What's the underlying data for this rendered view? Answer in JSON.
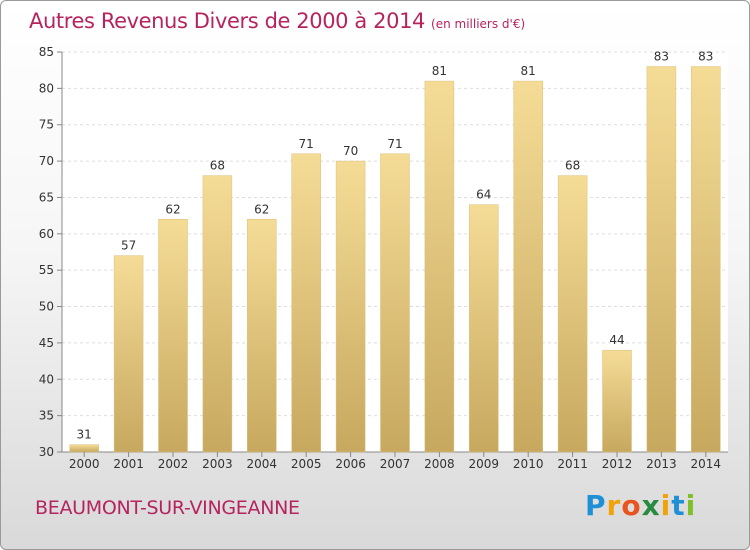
{
  "title": "Autres Revenus Divers de 2000 à 2014",
  "unit": "(en milliers d'€)",
  "city": "BEAUMONT-SUR-VINGEANNE",
  "logo": {
    "letters": [
      {
        "ch": "P",
        "color": "#1f8fd6"
      },
      {
        "ch": "r",
        "color": "#f0a20a"
      },
      {
        "ch": "o",
        "color": "#e8531f"
      },
      {
        "ch": "x",
        "color": "#2a8a3f"
      },
      {
        "ch": "i",
        "color": "#f0a20a"
      },
      {
        "ch": "t",
        "color": "#1f8fd6"
      },
      {
        "ch": "i",
        "color": "#7fbf2a"
      }
    ]
  },
  "chart_data": {
    "type": "bar",
    "categories": [
      "2000",
      "2001",
      "2002",
      "2003",
      "2004",
      "2005",
      "2006",
      "2007",
      "2008",
      "2009",
      "2010",
      "2011",
      "2012",
      "2013",
      "2014"
    ],
    "values": [
      31,
      57,
      62,
      68,
      62,
      71,
      70,
      71,
      81,
      64,
      81,
      68,
      44,
      83,
      83
    ],
    "ylim": [
      30,
      85
    ],
    "yticks": [
      30,
      35,
      40,
      45,
      50,
      55,
      60,
      65,
      70,
      75,
      80,
      85
    ],
    "grid": true,
    "bar_color": "#e8c97a"
  }
}
